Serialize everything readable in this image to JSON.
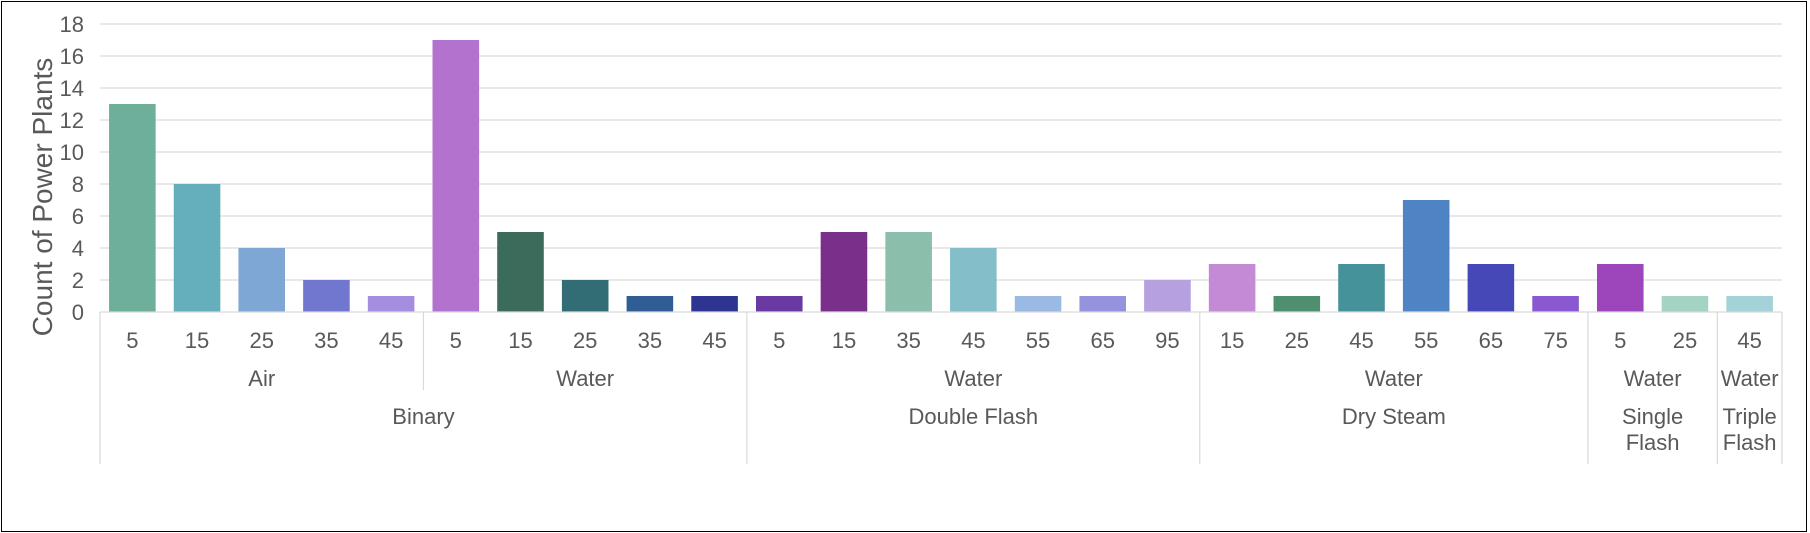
{
  "chart_data": {
    "type": "bar",
    "ylabel": "Count of Power Plants",
    "ylim": [
      0,
      18
    ],
    "yticks": [
      0,
      2,
      4,
      6,
      8,
      10,
      12,
      14,
      16,
      18
    ],
    "grid": true,
    "legend": "none",
    "groups": [
      {
        "name": "Binary",
        "subgroups": [
          {
            "name": "Air",
            "categories": [
              "5",
              "15",
              "25",
              "35",
              "45"
            ],
            "values": [
              13,
              8,
              4,
              2,
              1
            ]
          },
          {
            "name": "Water",
            "categories": [
              "5",
              "15",
              "25",
              "35",
              "45"
            ],
            "values": [
              17,
              5,
              2,
              1,
              1
            ]
          }
        ]
      },
      {
        "name": "Double Flash",
        "subgroups": [
          {
            "name": "Water",
            "categories": [
              "5",
              "15",
              "35",
              "45",
              "55",
              "65",
              "95"
            ],
            "values": [
              1,
              5,
              5,
              4,
              1,
              1,
              2
            ]
          }
        ]
      },
      {
        "name": "Dry Steam",
        "subgroups": [
          {
            "name": "Water",
            "categories": [
              "15",
              "25",
              "45",
              "55",
              "65",
              "75"
            ],
            "values": [
              3,
              1,
              3,
              7,
              3,
              1
            ]
          }
        ]
      },
      {
        "name": "Single Flash",
        "subgroups": [
          {
            "name": "Water",
            "categories": [
              "5",
              "25"
            ],
            "values": [
              3,
              1
            ]
          }
        ]
      },
      {
        "name": "Triple Flash",
        "subgroups": [
          {
            "name": "Water",
            "categories": [
              "45"
            ],
            "values": [
              1
            ]
          }
        ]
      }
    ],
    "bar_colors": [
      "#6daf9b",
      "#65aebb",
      "#7fa7d6",
      "#7177cf",
      "#a58edf",
      "#b472cf",
      "#3b6b5b",
      "#326c74",
      "#2f5d94",
      "#2e3591",
      "#6a3aa2",
      "#7a2f8a",
      "#8cbfab",
      "#84bec9",
      "#9ab9e3",
      "#9693de",
      "#b6a0e0",
      "#c58ad6",
      "#4e8f71",
      "#46929a",
      "#4f84c4",
      "#4648b8",
      "#8a59cf",
      "#9d45bb",
      "#a3d3c4",
      "#a3d3d9"
    ]
  }
}
